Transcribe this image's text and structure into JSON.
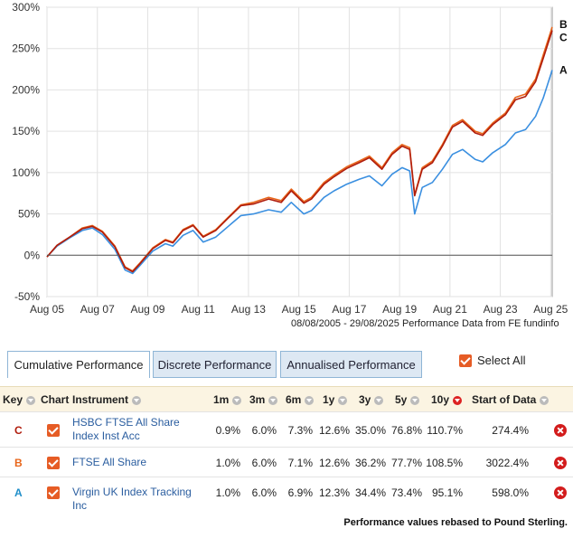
{
  "chart_data": {
    "type": "line",
    "ylim": [
      -50,
      300
    ],
    "y_ticks": [
      "300%",
      "250%",
      "200%",
      "150%",
      "100%",
      "50%",
      "0%",
      "-50%"
    ],
    "y_tick_values": [
      300,
      250,
      200,
      150,
      100,
      50,
      0,
      -50
    ],
    "x_ticks": [
      "Aug 05",
      "Aug 07",
      "Aug 09",
      "Aug 11",
      "Aug 13",
      "Aug 15",
      "Aug 17",
      "Aug 19",
      "Aug 21",
      "Aug 23",
      "Aug 25"
    ],
    "x_tick_years": [
      2005.6,
      2007.6,
      2009.6,
      2011.6,
      2013.6,
      2015.6,
      2017.6,
      2019.6,
      2021.6,
      2023.6,
      2025.6
    ],
    "xlim": [
      2005.6,
      2025.66
    ],
    "grid": true,
    "series": [
      {
        "name": "C",
        "color": "#b01c0c",
        "x": [
          2005.6,
          2006.0,
          2006.5,
          2007.0,
          2007.4,
          2007.8,
          2008.3,
          2008.7,
          2009.0,
          2009.3,
          2009.8,
          2010.3,
          2010.6,
          2011.0,
          2011.4,
          2011.8,
          2012.3,
          2012.8,
          2013.3,
          2013.8,
          2014.4,
          2014.9,
          2015.3,
          2015.8,
          2016.1,
          2016.6,
          2017.0,
          2017.5,
          2018.0,
          2018.4,
          2018.9,
          2019.3,
          2019.7,
          2020.0,
          2020.2,
          2020.5,
          2020.9,
          2021.3,
          2021.7,
          2022.1,
          2022.6,
          2022.9,
          2023.3,
          2023.8,
          2024.2,
          2024.6,
          2025.0,
          2025.3,
          2025.66
        ],
        "y": [
          -2,
          12,
          22,
          32,
          35,
          28,
          10,
          -15,
          -20,
          -10,
          8,
          18,
          15,
          30,
          36,
          22,
          30,
          45,
          60,
          62,
          68,
          64,
          78,
          63,
          68,
          86,
          95,
          105,
          112,
          118,
          104,
          122,
          132,
          128,
          72,
          104,
          112,
          132,
          155,
          162,
          148,
          145,
          158,
          170,
          188,
          192,
          210,
          238,
          272
        ]
      },
      {
        "name": "B",
        "color": "#e8661b",
        "x": [
          2005.6,
          2006.0,
          2006.5,
          2007.0,
          2007.4,
          2007.8,
          2008.3,
          2008.7,
          2009.0,
          2009.3,
          2009.8,
          2010.3,
          2010.6,
          2011.0,
          2011.4,
          2011.8,
          2012.3,
          2012.8,
          2013.3,
          2013.8,
          2014.4,
          2014.9,
          2015.3,
          2015.8,
          2016.1,
          2016.6,
          2017.0,
          2017.5,
          2018.0,
          2018.4,
          2018.9,
          2019.3,
          2019.7,
          2020.0,
          2020.2,
          2020.5,
          2020.9,
          2021.3,
          2021.7,
          2022.1,
          2022.6,
          2022.9,
          2023.3,
          2023.8,
          2024.2,
          2024.6,
          2025.0,
          2025.3,
          2025.66
        ],
        "y": [
          -2,
          12,
          22,
          33,
          36,
          29,
          11,
          -14,
          -19,
          -9,
          9,
          19,
          16,
          31,
          37,
          23,
          31,
          46,
          61,
          64,
          70,
          66,
          80,
          65,
          70,
          88,
          97,
          107,
          114,
          120,
          106,
          124,
          134,
          130,
          73,
          106,
          114,
          134,
          157,
          164,
          150,
          147,
          160,
          172,
          191,
          195,
          213,
          242,
          276
        ]
      },
      {
        "name": "A",
        "color": "#3a8fe0",
        "x": [
          2005.6,
          2006.0,
          2006.5,
          2007.0,
          2007.4,
          2007.8,
          2008.3,
          2008.7,
          2009.0,
          2009.3,
          2009.8,
          2010.3,
          2010.6,
          2011.0,
          2011.4,
          2011.8,
          2012.3,
          2012.8,
          2013.3,
          2013.8,
          2014.4,
          2014.9,
          2015.3,
          2015.8,
          2016.1,
          2016.6,
          2017.0,
          2017.5,
          2018.0,
          2018.4,
          2018.9,
          2019.3,
          2019.7,
          2020.0,
          2020.2,
          2020.5,
          2020.9,
          2021.3,
          2021.7,
          2022.1,
          2022.6,
          2022.9,
          2023.3,
          2023.8,
          2024.2,
          2024.6,
          2025.0,
          2025.3,
          2025.66
        ],
        "y": [
          -2,
          11,
          21,
          30,
          33,
          25,
          7,
          -18,
          -22,
          -12,
          5,
          14,
          11,
          24,
          30,
          16,
          22,
          35,
          48,
          50,
          55,
          52,
          64,
          50,
          54,
          70,
          78,
          86,
          92,
          96,
          84,
          98,
          106,
          102,
          50,
          82,
          88,
          104,
          122,
          128,
          116,
          113,
          124,
          134,
          148,
          152,
          168,
          190,
          224
        ]
      }
    ],
    "end_labels": [
      "B",
      "C",
      "A"
    ]
  },
  "source_text": "08/08/2005 - 29/08/2025 Performance Data from FE fundinfo",
  "tabs": [
    {
      "label": "Cumulative Performance",
      "active": true
    },
    {
      "label": "Discrete Performance",
      "active": false
    },
    {
      "label": "Annualised Performance",
      "active": false
    }
  ],
  "select_all": {
    "label": "Select All",
    "checked": true
  },
  "table": {
    "headers": [
      "Key",
      "Chart",
      "Instrument",
      "1m",
      "3m",
      "6m",
      "1y",
      "3y",
      "5y",
      "10y",
      "Start of Data"
    ],
    "rows": [
      {
        "key": "C",
        "key_color": "#b01c0c",
        "instrument": "HSBC FTSE All Share Index Inst Acc",
        "vals": [
          "0.9%",
          "6.0%",
          "7.3%",
          "12.6%",
          "35.0%",
          "76.8%",
          "110.7%",
          "274.4%"
        ]
      },
      {
        "key": "B",
        "key_color": "#e8661b",
        "instrument": "FTSE All Share",
        "vals": [
          "1.0%",
          "6.0%",
          "7.1%",
          "12.6%",
          "36.2%",
          "77.7%",
          "108.5%",
          "3022.4%"
        ]
      },
      {
        "key": "A",
        "key_color": "#1f8ec9",
        "instrument": "Virgin UK Index Tracking Inc",
        "vals": [
          "1.0%",
          "6.0%",
          "6.9%",
          "12.3%",
          "34.4%",
          "73.4%",
          "95.1%",
          "598.0%"
        ]
      }
    ]
  },
  "footnote": "Performance values rebased to Pound Sterling."
}
